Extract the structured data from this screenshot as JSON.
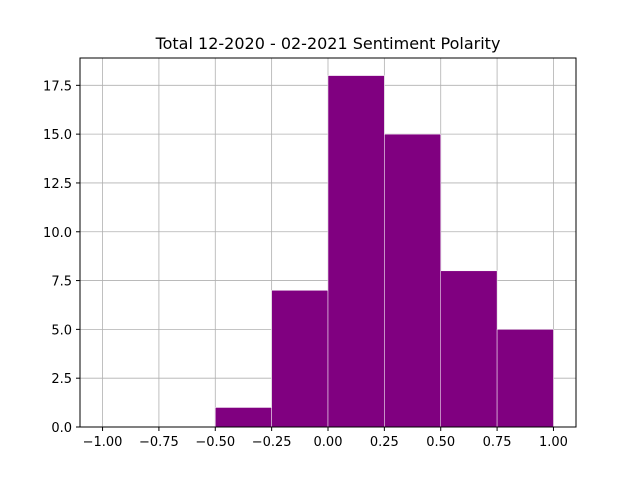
{
  "chart_data": {
    "type": "bar",
    "title": "Total 12-2020 - 02-2021 Sentiment Polarity",
    "xlabel": "",
    "ylabel": "",
    "bins": [
      {
        "x0": -0.5,
        "x1": -0.25,
        "count": 1
      },
      {
        "x0": -0.25,
        "x1": 0.0,
        "count": 7
      },
      {
        "x0": 0.0,
        "x1": 0.25,
        "count": 18
      },
      {
        "x0": 0.25,
        "x1": 0.5,
        "count": 15
      },
      {
        "x0": 0.5,
        "x1": 0.75,
        "count": 8
      },
      {
        "x0": 0.75,
        "x1": 1.0,
        "count": 5
      }
    ],
    "xlim": [
      -1.1,
      1.1
    ],
    "ylim": [
      0,
      18.9
    ],
    "xticks": [
      -1.0,
      -0.75,
      -0.5,
      -0.25,
      0.0,
      0.25,
      0.5,
      0.75,
      1.0
    ],
    "xtick_labels": [
      "−1.00",
      "−0.75",
      "−0.50",
      "−0.25",
      "0.00",
      "0.25",
      "0.50",
      "0.75",
      "1.00"
    ],
    "yticks": [
      0,
      2.5,
      5,
      7.5,
      10,
      12.5,
      15,
      17.5
    ],
    "ytick_labels": [
      "0.0",
      "2.5",
      "5.0",
      "7.5",
      "10.0",
      "12.5",
      "15.0",
      "17.5"
    ],
    "grid": true,
    "bar_color": "#800080",
    "bar_edge_color": "#ffffff",
    "grid_color": "#b0b0b0"
  }
}
